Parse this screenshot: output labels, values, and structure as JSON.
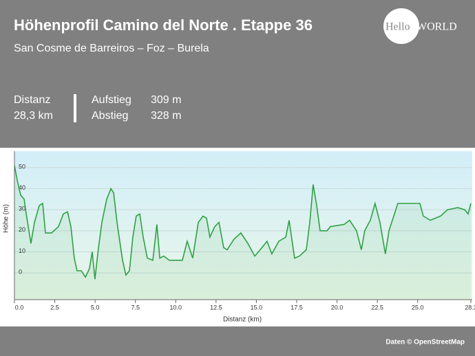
{
  "header": {
    "title": "Höhenprofil Camino del Norte . Etappe 36",
    "subtitle": "San Cosme de Barreiros – Foz – Burela",
    "logo_left": "Hello",
    "logo_right": "WORLD"
  },
  "stats": [
    {
      "label": "Distanz",
      "value": "28,3 km"
    },
    {
      "label": "Aufstieg",
      "value": "309 m"
    },
    {
      "label": "Abstieg",
      "value": "328 m"
    }
  ],
  "footer": "Daten © OpenStreetMap",
  "chart_data": {
    "type": "area",
    "xlabel": "Distanz  (km)",
    "ylabel": "Höhe (m)",
    "color": "#2ea043",
    "grid": true,
    "x": [
      0,
      0.17,
      0.38,
      0.6,
      0.73,
      1.02,
      1.24,
      1.54,
      1.75,
      1.92,
      2.3,
      2.73,
      3.03,
      3.29,
      3.5,
      3.71,
      3.88,
      4.14,
      4.4,
      4.65,
      4.82,
      4.99,
      5.21,
      5.42,
      5.72,
      5.98,
      6.15,
      6.36,
      6.7,
      6.91,
      7.13,
      7.34,
      7.55,
      7.77,
      7.98,
      8.24,
      8.58,
      8.83,
      9.01,
      9.26,
      9.6,
      9.99,
      10.41,
      10.71,
      11.05,
      11.4,
      11.69,
      11.91,
      12.12,
      12.42,
      12.68,
      12.97,
      13.19,
      13.61,
      14.04,
      14.47,
      14.9,
      15.24,
      15.66,
      15.96,
      16.39,
      16.82,
      17.03,
      17.37,
      17.67,
      18.1,
      18.31,
      18.52,
      18.74,
      18.95,
      19.38,
      19.59,
      20.44,
      20.78,
      21.21,
      21.51,
      21.72,
      22.07,
      22.36,
      22.66,
      23.0,
      23.22,
      23.56,
      23.77,
      24.5,
      25.14,
      25.35,
      25.78,
      26.42,
      26.85,
      27.49,
      27.92,
      28.13,
      28.3
    ],
    "values": [
      51,
      44,
      37,
      35,
      28,
      14,
      24,
      32,
      33,
      19,
      19,
      22,
      28,
      29,
      22,
      7,
      1,
      1,
      -2,
      2,
      10,
      -3,
      12,
      24,
      35,
      40,
      38,
      24,
      6,
      -1,
      1,
      17,
      27,
      28,
      17,
      7,
      6,
      23,
      7,
      8,
      6,
      6,
      6,
      15,
      7,
      24,
      27,
      26,
      17,
      22,
      24,
      12,
      11,
      16,
      19,
      14,
      8,
      11,
      15,
      9,
      15,
      17,
      25,
      7,
      8,
      11,
      24,
      42,
      32,
      20,
      20,
      22,
      23,
      25,
      20,
      11,
      20,
      25,
      33,
      24,
      9,
      20,
      28,
      33,
      33,
      33,
      27,
      25,
      27,
      30,
      31,
      30,
      28,
      33
    ],
    "xlim": [
      0,
      28.3
    ],
    "ylim": [
      -12.7,
      57.8
    ],
    "xticks": [
      {
        "value": 0,
        "label": "0.0"
      },
      2.5,
      {
        "value": 5,
        "label": "5.0"
      },
      7.5,
      {
        "value": 10,
        "label": "10.0"
      },
      12.5,
      {
        "value": 15,
        "label": "15.0"
      },
      17.5,
      {
        "value": 20,
        "label": "20.0"
      },
      22.5,
      {
        "value": 25,
        "label": "25.0"
      },
      28.3
    ],
    "yticks": [
      0,
      10,
      20,
      30,
      40,
      50
    ]
  }
}
